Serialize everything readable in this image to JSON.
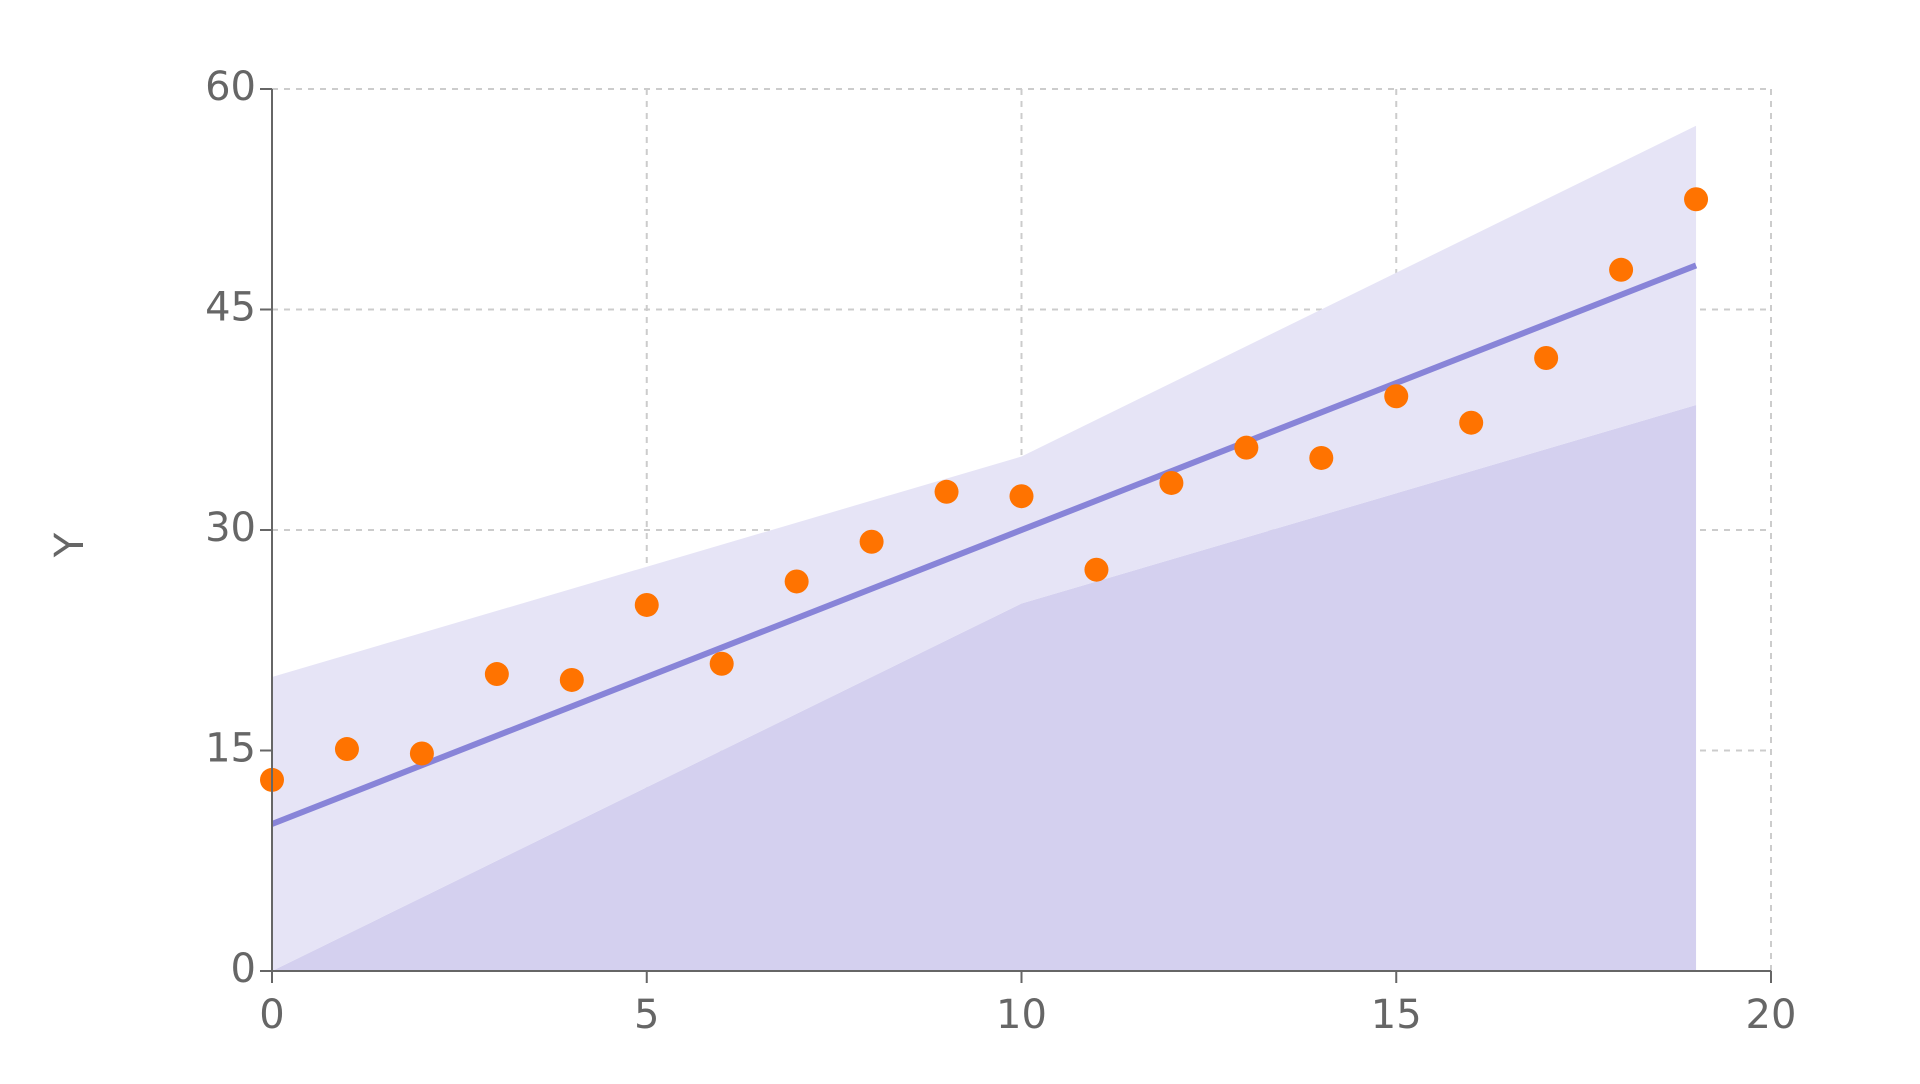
{
  "chart_data": {
    "type": "composed",
    "ylabel": "Y",
    "xlim": [
      0,
      20
    ],
    "xticks": [
      0,
      5,
      10,
      15,
      20
    ],
    "ylim": [
      0,
      60
    ],
    "yticks": [
      0,
      15,
      30,
      45,
      60
    ],
    "grid": true,
    "series": [
      {
        "type": "area",
        "color": "#d4d0ef",
        "x": [
          0,
          10,
          19
        ],
        "values": [
          0,
          25,
          38.5
        ]
      },
      {
        "type": "area",
        "stacked": true,
        "color": "#e6e4f6",
        "x": [
          0,
          10,
          19
        ],
        "values": [
          20,
          10,
          19
        ]
      },
      {
        "type": "line",
        "color": "#8884d8",
        "x": [
          0,
          19
        ],
        "values": [
          10,
          48
        ]
      },
      {
        "type": "scatter",
        "color": "#ff7300",
        "x": [
          0,
          1,
          2,
          3,
          4,
          5,
          6,
          7,
          8,
          9,
          10,
          11,
          12,
          13,
          14,
          15,
          16,
          17,
          18,
          19
        ],
        "values": [
          13.0,
          15.1,
          14.8,
          20.2,
          19.8,
          24.9,
          20.9,
          26.5,
          29.2,
          32.6,
          32.3,
          27.3,
          33.2,
          35.6,
          34.9,
          39.1,
          37.3,
          41.7,
          47.7,
          52.5
        ]
      }
    ]
  }
}
